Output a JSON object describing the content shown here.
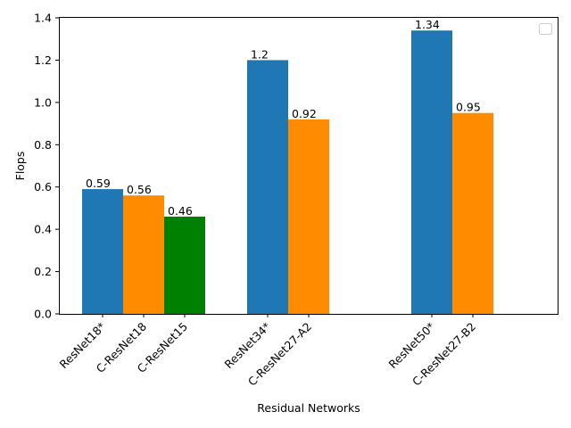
{
  "chart_data": {
    "type": "bar",
    "title": "",
    "xlabel": "Residual Networks",
    "ylabel": "Flops",
    "ylim": [
      0,
      1.4
    ],
    "yticks": [
      "0.0",
      "0.2",
      "0.4",
      "0.6",
      "0.8",
      "1.0",
      "1.2",
      "1.4"
    ],
    "grid": false,
    "legend": {
      "placement": "upper-right",
      "entries": []
    },
    "colors": {
      "blue": "#1f77b4",
      "orange": "#ff8c00",
      "green": "#008000"
    },
    "bars": [
      {
        "label": "ResNet18*",
        "value": 0.59,
        "value_label": "0.59",
        "color": "#1f77b4"
      },
      {
        "label": "C-ResNet18",
        "value": 0.56,
        "value_label": "0.56",
        "color": "#ff8c00"
      },
      {
        "label": "C-ResNet15",
        "value": 0.46,
        "value_label": "0.46",
        "color": "#008000"
      },
      {
        "label": "ResNet34*",
        "value": 1.2,
        "value_label": "1.2",
        "color": "#1f77b4"
      },
      {
        "label": "C-ResNet27-A2",
        "value": 0.92,
        "value_label": "0.92",
        "color": "#ff8c00"
      },
      {
        "label": "ResNet50*",
        "value": 1.34,
        "value_label": "1.34",
        "color": "#1f77b4"
      },
      {
        "label": "C-ResNet27-B2",
        "value": 0.95,
        "value_label": "0.95",
        "color": "#ff8c00"
      }
    ]
  }
}
